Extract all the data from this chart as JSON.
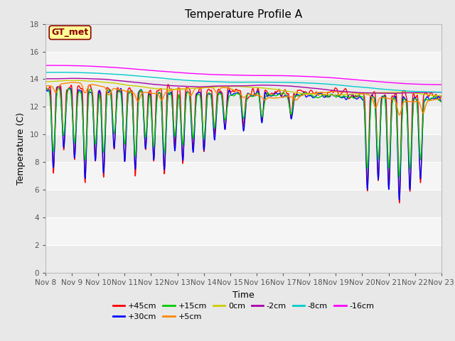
{
  "title": "Temperature Profile A",
  "xlabel": "Time",
  "ylabel": "Temperature (C)",
  "ylim": [
    0,
    18
  ],
  "xlim": [
    0,
    15
  ],
  "x_tick_labels": [
    "Nov 8",
    "Nov 9",
    "Nov 10",
    "Nov 11",
    "Nov 12",
    "Nov 13",
    "Nov 14",
    "Nov 15",
    "Nov 16",
    "Nov 17",
    "Nov 18",
    "Nov 19",
    "Nov 20",
    "Nov 21",
    "Nov 22",
    "Nov 23"
  ],
  "annotation_text": "GT_met",
  "annotation_color": "#8B0000",
  "annotation_bg": "#FFFF99",
  "series": [
    {
      "label": "+45cm",
      "color": "#FF0000"
    },
    {
      "label": "+30cm",
      "color": "#0000FF"
    },
    {
      "label": "+15cm",
      "color": "#00CC00"
    },
    {
      "label": "+5cm",
      "color": "#FF8800"
    },
    {
      "label": "0cm",
      "color": "#CCCC00"
    },
    {
      "label": "-2cm",
      "color": "#AA00AA"
    },
    {
      "label": "-8cm",
      "color": "#00CCCC"
    },
    {
      "label": "-16cm",
      "color": "#FF00FF"
    }
  ],
  "bg_color": "#E8E8E8",
  "plot_bg": "#F0F0F0",
  "grid_color": "#FFFFFF",
  "title_fontsize": 11,
  "label_fontsize": 9,
  "tick_fontsize": 7.5,
  "legend_fontsize": 8
}
